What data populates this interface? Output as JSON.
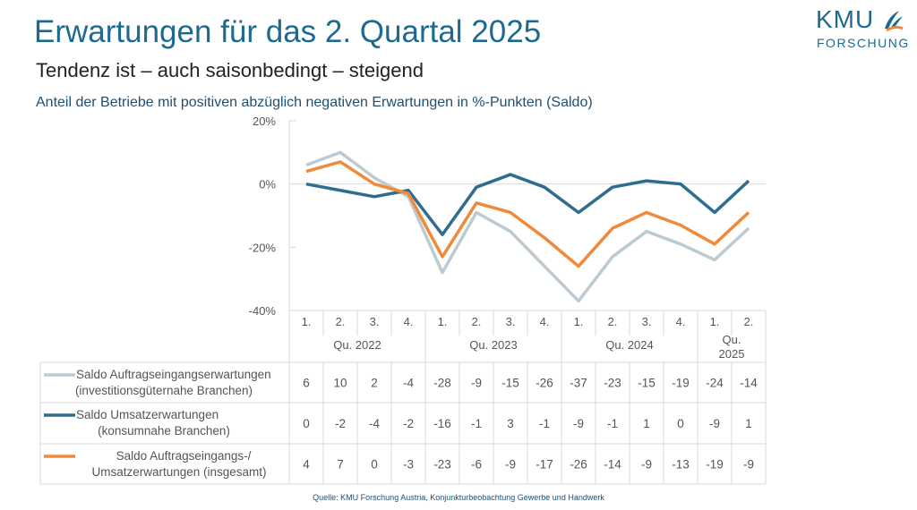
{
  "title": "Erwartungen für das 2. Quartal 2025",
  "subtitle": "Tendenz ist – auch saisonbedingt – steigend",
  "description": "Anteil der Betriebe mit positiven abzüglich negativen Erwartungen in %-Punkten (Saldo)",
  "logo": {
    "line1": "KMU",
    "line2": "FORSCHUNG"
  },
  "source": "Quelle: KMU Forschung Austria, Konjunkturbeobachtung Gewerbe und Handwerk",
  "chart_data": {
    "type": "line",
    "ylim": [
      -40,
      20
    ],
    "yticks": [
      "20%",
      "0%",
      "-20%",
      "-40%"
    ],
    "ytick_values": [
      20,
      0,
      -20,
      -40
    ],
    "categories": [
      "1.",
      "2.",
      "3.",
      "4.",
      "1.",
      "2.",
      "3.",
      "4.",
      "1.",
      "2.",
      "3.",
      "4.",
      "1.",
      "2."
    ],
    "groups": [
      {
        "label": "Qu. 2022",
        "count": 4
      },
      {
        "label": "Qu. 2023",
        "count": 4
      },
      {
        "label": "Qu. 2024",
        "count": 4
      },
      {
        "label": "Qu. 2025",
        "count": 2
      }
    ],
    "series": [
      {
        "name": "Saldo Auftragseingangserwartungen (investitionsgüternahe Branchen)",
        "line1": "Saldo Auftragseingangserwartungen",
        "line2": "(investitionsgüternahe Branchen)",
        "color": "#bccbd1",
        "values": [
          6,
          10,
          2,
          -4,
          -28,
          -9,
          -15,
          -26,
          -37,
          -23,
          -15,
          -19,
          -24,
          -14
        ]
      },
      {
        "name": "Saldo Umsatzerwartungen (konsumnahe Branchen)",
        "line1": "Saldo Umsatzerwartungen",
        "line2": "(konsumnahe Branchen)",
        "color": "#2f6d8f",
        "values": [
          0,
          -2,
          -4,
          -2,
          -16,
          -1,
          3,
          -1,
          -9,
          -1,
          1,
          0,
          -9,
          1
        ]
      },
      {
        "name": "Saldo Auftragseingangs-/Umsatzerwartungen (insgesamt)",
        "line1": "Saldo Auftragseingangs-/",
        "line2": "Umsatzerwartungen (insgesamt)",
        "color": "#f08a3a",
        "values": [
          4,
          7,
          0,
          -3,
          -23,
          -6,
          -9,
          -17,
          -26,
          -14,
          -9,
          -13,
          -19,
          -9
        ]
      }
    ]
  }
}
